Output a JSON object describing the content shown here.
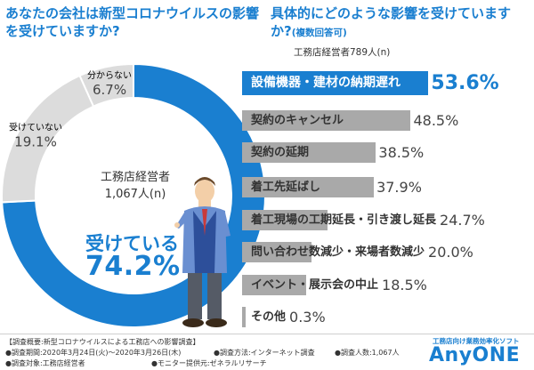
{
  "left_question": "あなたの会社は新型コロナウイルスの影響を受けていますか?",
  "right_question": "具体的にどのような影響を受けていますか?",
  "right_question_note": "(複数回答可)",
  "right_sample": "工務店経営者789人(n)",
  "center_label_1": "工務店経営者",
  "center_label_2": "1,067人(n)",
  "colors": {
    "accent": "#1a7fd0",
    "gray_dark": "#a9a9a9",
    "gray_light": "#dcdcdc"
  },
  "chart_data": [
    {
      "type": "pie",
      "categories": [
        "受けている",
        "受けていない",
        "分からない"
      ],
      "values": [
        74.2,
        19.1,
        6.7
      ],
      "labels": [
        "74.2%",
        "19.1%",
        "6.7%"
      ],
      "title": ""
    },
    {
      "type": "bar",
      "orientation": "horizontal",
      "categories": [
        "設備機器・建材の納期遅れ",
        "契約のキャンセル",
        "契約の延期",
        "着工先延ばし",
        "着工現場の工期延長・引き渡し延長",
        "問い合わせ数減少・来場者数減少",
        "イベント・展示会の中止",
        "その他"
      ],
      "values": [
        53.6,
        48.5,
        38.5,
        37.9,
        24.7,
        20.0,
        18.5,
        0.3
      ],
      "labels": [
        "53.6%",
        "48.5%",
        "38.5%",
        "37.9%",
        "24.7%",
        "20.0%",
        "18.5%",
        "0.3%"
      ],
      "xlim": [
        0,
        60
      ]
    }
  ],
  "footer": {
    "summary": "【調査概要:新型コロナウイルスによる工務店への影響調査】",
    "period": "●調査期間:2020年3月24日(火)〜2020年3月26日(木)",
    "method": "●調査方法:インターネット調査",
    "count": "●調査人数:1,067人",
    "target": "●調査対象:工務店経営者",
    "provider": "●モニター提供元:ゼネラルリサーチ"
  },
  "brand": {
    "tagline": "工務店向け業務効率化ソフト",
    "name": "AnyONE"
  }
}
